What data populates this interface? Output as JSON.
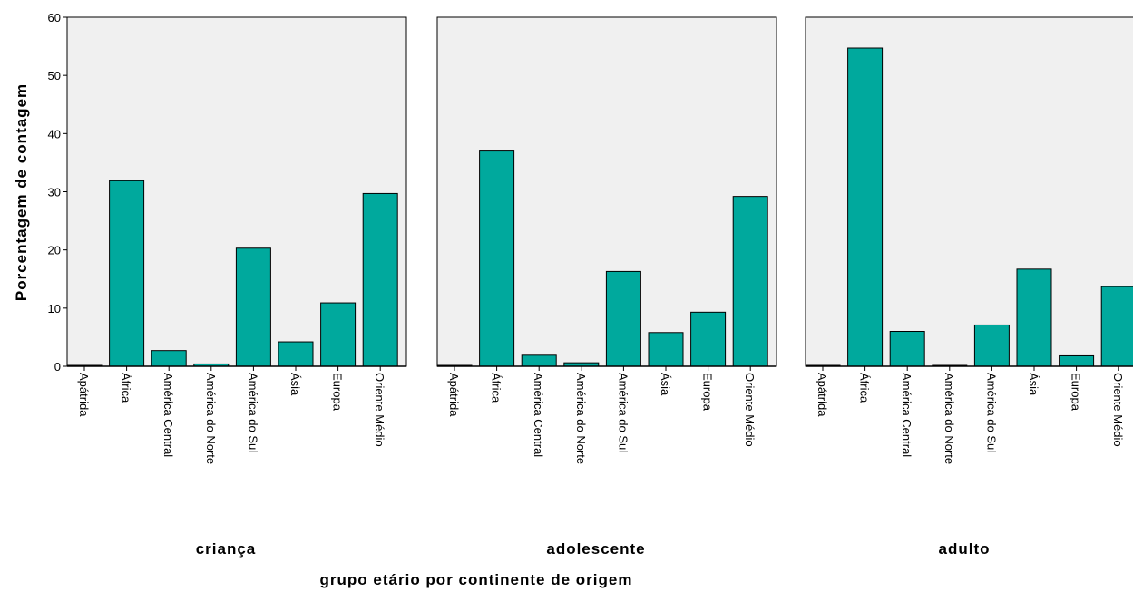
{
  "chart_data": {
    "type": "bar",
    "ylabel": "Porcentagem de contagem",
    "xlabel": "grupo etário por continente de origem",
    "ylim": [
      0,
      60
    ],
    "yticks": [
      "0",
      "10",
      "20",
      "30",
      "40",
      "50",
      "60"
    ],
    "grid": false,
    "colors": {
      "bar": "#00A99D",
      "panel_bg": "#F0F0F0",
      "outline": "#000000"
    },
    "categories": [
      "Apátrida",
      "África",
      "América Central",
      "América do Norte",
      "América do Sul",
      "Ásia",
      "Europa",
      "Oriente Médio"
    ],
    "panels": [
      {
        "name": "criança",
        "values": [
          0,
          31.9,
          2.7,
          0.4,
          20.3,
          4.2,
          10.9,
          29.7
        ]
      },
      {
        "name": "adolescente",
        "values": [
          0,
          37.0,
          1.9,
          0.6,
          16.3,
          5.8,
          9.3,
          29.2
        ]
      },
      {
        "name": "adulto",
        "values": [
          0,
          54.7,
          6.0,
          0,
          7.1,
          16.7,
          1.8,
          13.7
        ]
      }
    ]
  }
}
